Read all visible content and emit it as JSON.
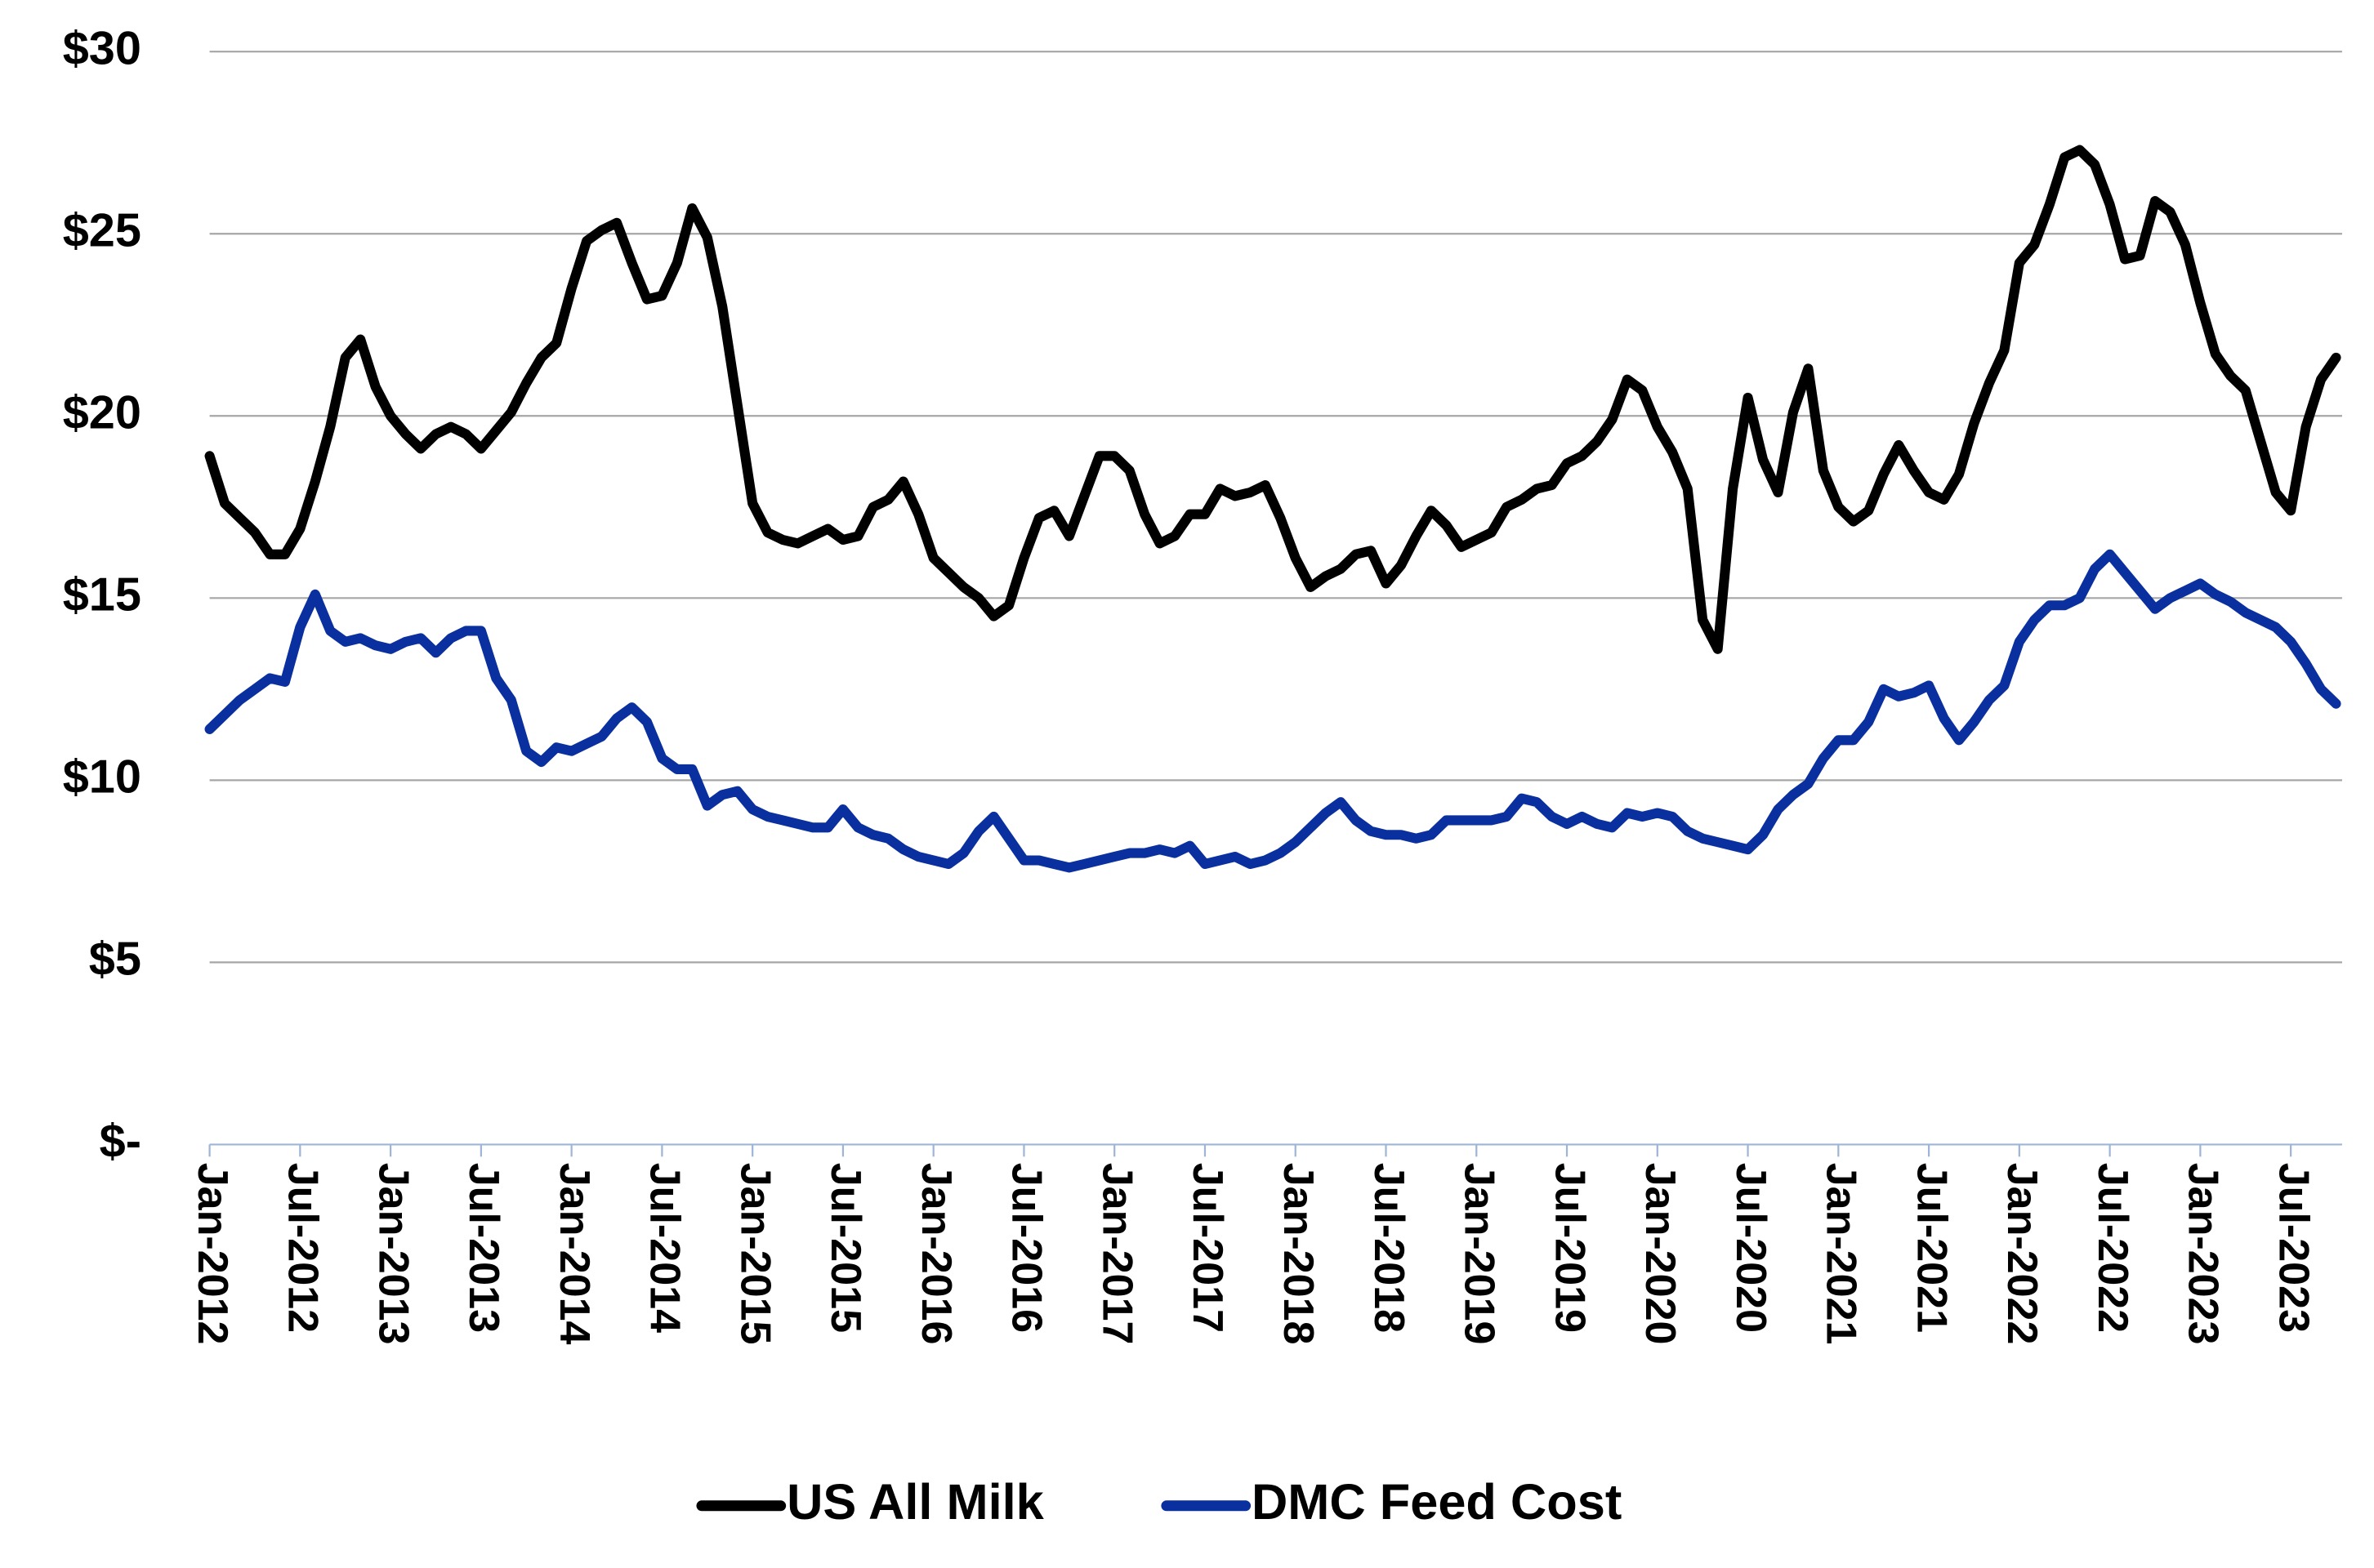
{
  "chart_data": {
    "type": "line",
    "categories": [
      "Jan-2012",
      null,
      null,
      null,
      null,
      null,
      "Jul-2012",
      null,
      null,
      null,
      null,
      null,
      "Jan-2013",
      null,
      null,
      null,
      null,
      null,
      "Jul-2013",
      null,
      null,
      null,
      null,
      null,
      "Jan-2014",
      null,
      null,
      null,
      null,
      null,
      "Jul-2014",
      null,
      null,
      null,
      null,
      null,
      "Jan-2015",
      null,
      null,
      null,
      null,
      null,
      "Jul-2015",
      null,
      null,
      null,
      null,
      null,
      "Jan-2016",
      null,
      null,
      null,
      null,
      null,
      "Jul-2016",
      null,
      null,
      null,
      null,
      null,
      "Jan-2017",
      null,
      null,
      null,
      null,
      null,
      "Jul-2017",
      null,
      null,
      null,
      null,
      null,
      "Jan-2018",
      null,
      null,
      null,
      null,
      null,
      "Jul-2018",
      null,
      null,
      null,
      null,
      null,
      "Jan-2019",
      null,
      null,
      null,
      null,
      null,
      "Jul-2019",
      null,
      null,
      null,
      null,
      null,
      "Jan-2020",
      null,
      null,
      null,
      null,
      null,
      "Jul-2020",
      null,
      null,
      null,
      null,
      null,
      "Jan-2021",
      null,
      null,
      null,
      null,
      null,
      "Jul-2021",
      null,
      null,
      null,
      null,
      null,
      "Jan-2022",
      null,
      null,
      null,
      null,
      null,
      "Jul-2022",
      null,
      null,
      null,
      null,
      null,
      "Jan-2023",
      null,
      null,
      null,
      null,
      null,
      "Jul-2023",
      null,
      null,
      null
    ],
    "series": [
      {
        "name": "US All Milk",
        "color": "#000000",
        "values": [
          18.9,
          17.6,
          17.2,
          16.8,
          16.2,
          16.2,
          16.9,
          18.2,
          19.7,
          21.6,
          22.1,
          20.8,
          20.0,
          19.5,
          19.1,
          19.5,
          19.7,
          19.5,
          19.1,
          19.6,
          20.1,
          20.9,
          21.6,
          22.0,
          23.5,
          24.8,
          25.1,
          25.3,
          24.2,
          23.2,
          23.3,
          24.2,
          25.7,
          24.9,
          23.0,
          20.3,
          17.6,
          16.8,
          16.6,
          16.5,
          16.7,
          16.9,
          16.6,
          16.7,
          17.5,
          17.7,
          18.2,
          17.3,
          16.1,
          15.7,
          15.3,
          15.0,
          14.5,
          14.8,
          16.1,
          17.2,
          17.4,
          16.7,
          17.8,
          18.9,
          18.9,
          18.5,
          17.3,
          16.5,
          16.7,
          17.3,
          17.3,
          18.0,
          17.8,
          17.9,
          18.1,
          17.2,
          16.1,
          15.3,
          15.6,
          15.8,
          16.2,
          16.3,
          15.4,
          15.9,
          16.7,
          17.4,
          17.0,
          16.4,
          16.6,
          16.8,
          17.5,
          17.7,
          18.0,
          18.1,
          18.7,
          18.9,
          19.3,
          19.9,
          21.0,
          20.7,
          19.7,
          19.0,
          18.0,
          14.4,
          13.6,
          18.0,
          20.5,
          18.8,
          17.9,
          20.1,
          21.3,
          18.5,
          17.5,
          17.1,
          17.4,
          18.4,
          19.2,
          18.5,
          17.9,
          17.7,
          18.4,
          19.8,
          20.9,
          21.8,
          24.2,
          24.7,
          25.8,
          27.1,
          27.3,
          26.9,
          25.8,
          24.3,
          24.4,
          25.9,
          25.6,
          24.7,
          23.1,
          21.7,
          21.1,
          20.7,
          19.3,
          17.9,
          17.4,
          19.7,
          21.0,
          21.6
        ]
      },
      {
        "name": "DMC Feed Cost",
        "color": "#0a2f9e",
        "values": [
          11.4,
          11.8,
          12.2,
          12.5,
          12.8,
          12.7,
          14.2,
          15.1,
          14.1,
          13.8,
          13.9,
          13.7,
          13.6,
          13.8,
          13.9,
          13.5,
          13.9,
          14.1,
          14.1,
          12.8,
          12.2,
          10.8,
          10.5,
          10.9,
          10.8,
          11.0,
          11.2,
          11.7,
          12.0,
          11.6,
          10.6,
          10.3,
          10.3,
          9.3,
          9.6,
          9.7,
          9.2,
          9.0,
          8.9,
          8.8,
          8.7,
          8.7,
          9.2,
          8.7,
          8.5,
          8.4,
          8.1,
          7.9,
          7.8,
          7.7,
          8.0,
          8.6,
          9.0,
          8.4,
          7.8,
          7.8,
          7.7,
          7.6,
          7.7,
          7.8,
          7.9,
          8.0,
          8.0,
          8.1,
          8.0,
          8.2,
          7.7,
          7.8,
          7.9,
          7.7,
          7.8,
          8.0,
          8.3,
          8.7,
          9.1,
          9.4,
          8.9,
          8.6,
          8.5,
          8.5,
          8.4,
          8.5,
          8.9,
          8.9,
          8.9,
          8.9,
          9.0,
          9.5,
          9.4,
          9.0,
          8.8,
          9.0,
          8.8,
          8.7,
          9.1,
          9.0,
          9.1,
          9.0,
          8.6,
          8.4,
          8.3,
          8.2,
          8.1,
          8.5,
          9.2,
          9.6,
          9.9,
          10.6,
          11.1,
          11.1,
          11.6,
          12.5,
          12.3,
          12.4,
          12.6,
          11.7,
          11.1,
          11.6,
          12.2,
          12.6,
          13.8,
          14.4,
          14.8,
          14.8,
          15.0,
          15.8,
          16.2,
          15.7,
          15.2,
          14.7,
          15.0,
          15.2,
          15.4,
          15.1,
          14.9,
          14.6,
          14.4,
          14.2,
          13.8,
          13.2,
          12.5,
          12.1
        ]
      }
    ],
    "ylim": [
      0,
      30
    ],
    "yticks": [
      {
        "value": 0,
        "label": "$-"
      },
      {
        "value": 5,
        "label": "$5"
      },
      {
        "value": 10,
        "label": "$10"
      },
      {
        "value": 15,
        "label": "$15"
      },
      {
        "value": 20,
        "label": "$20"
      },
      {
        "value": 25,
        "label": "$25"
      },
      {
        "value": 30,
        "label": "$30"
      }
    ],
    "grid": true,
    "legend": "bottom"
  }
}
